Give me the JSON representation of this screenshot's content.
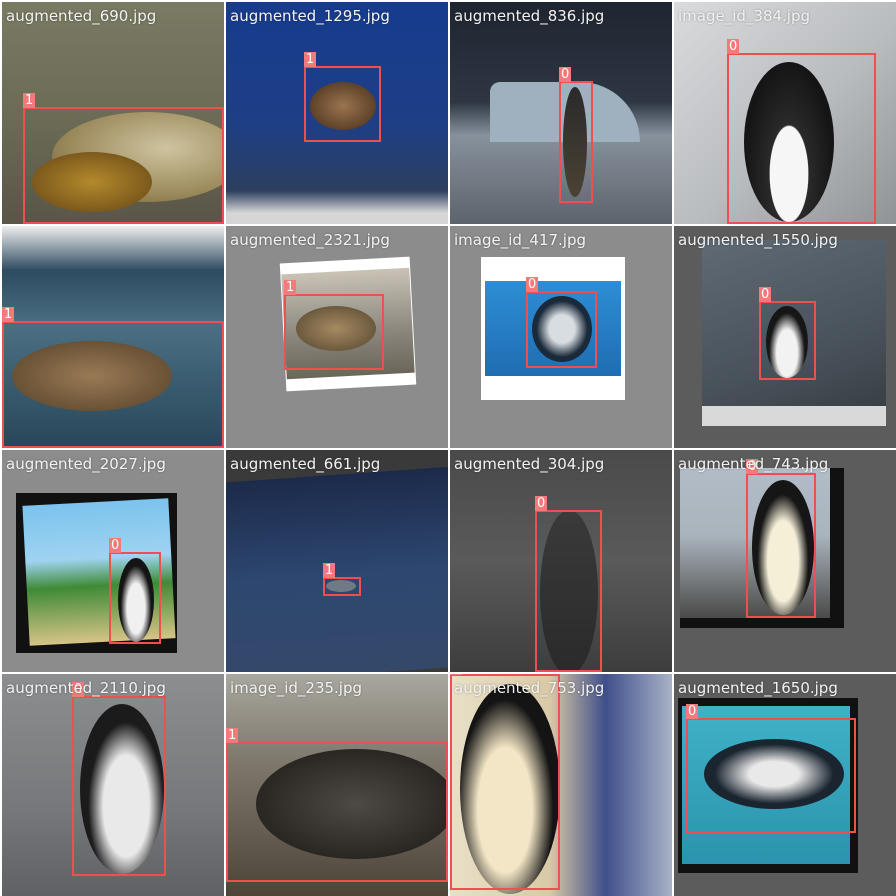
{
  "tiles": [
    {
      "filename": "augmented_690.jpg",
      "subject": "turtle",
      "boxes": [
        {
          "label": "1"
        }
      ]
    },
    {
      "filename": "augmented_1295.jpg",
      "subject": "turtle",
      "boxes": [
        {
          "label": "1"
        }
      ]
    },
    {
      "filename": "augmented_836.jpg",
      "subject": "penguin",
      "boxes": [
        {
          "label": "0"
        }
      ]
    },
    {
      "filename": "image_id_384.jpg",
      "subject": "penguin",
      "boxes": [
        {
          "label": "0"
        }
      ]
    },
    {
      "filename": "",
      "subject": "turtle",
      "boxes": [
        {
          "label": "1"
        }
      ]
    },
    {
      "filename": "augmented_2321.jpg",
      "subject": "turtle",
      "boxes": [
        {
          "label": "1"
        }
      ]
    },
    {
      "filename": "image_id_417.jpg",
      "subject": "penguin",
      "boxes": [
        {
          "label": "0"
        }
      ]
    },
    {
      "filename": "augmented_1550.jpg",
      "subject": "penguin",
      "boxes": [
        {
          "label": "0"
        }
      ]
    },
    {
      "filename": "augmented_2027.jpg",
      "subject": "penguin",
      "boxes": [
        {
          "label": "0"
        }
      ]
    },
    {
      "filename": "augmented_661.jpg",
      "subject": "turtle",
      "boxes": [
        {
          "label": "1"
        }
      ]
    },
    {
      "filename": "augmented_304.jpg",
      "subject": "penguin",
      "boxes": [
        {
          "label": "0"
        }
      ]
    },
    {
      "filename": "augmented_743.jpg",
      "subject": "penguin",
      "boxes": [
        {
          "label": "0"
        }
      ]
    },
    {
      "filename": "augmented_2110.jpg",
      "subject": "penguin",
      "boxes": [
        {
          "label": "0"
        }
      ]
    },
    {
      "filename": "image_id_235.jpg",
      "subject": "turtle",
      "boxes": [
        {
          "label": "1"
        }
      ]
    },
    {
      "filename": "augmented_753.jpg",
      "subject": "penguin",
      "boxes": [
        {
          "label": "0"
        }
      ]
    },
    {
      "filename": "augmented_1650.jpg",
      "subject": "penguin",
      "boxes": [
        {
          "label": "0"
        }
      ]
    }
  ]
}
